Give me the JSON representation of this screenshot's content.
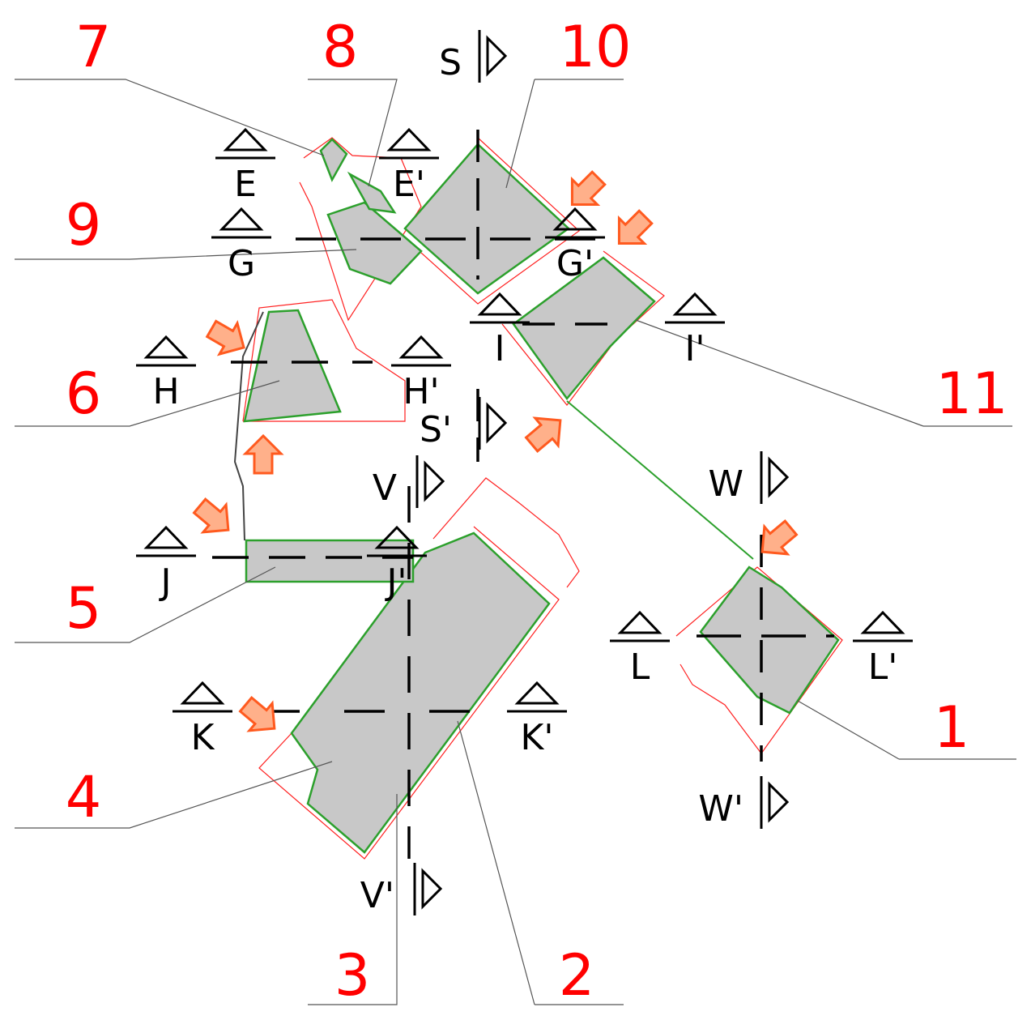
{
  "zone_labels": [
    "7",
    "8",
    "10",
    "9",
    "6",
    "11",
    "5",
    "4",
    "1",
    "3",
    "2"
  ],
  "section_markers": [
    "E",
    "E'",
    "G",
    "G'",
    "I",
    "I'",
    "H",
    "H'",
    "J",
    "J'",
    "L",
    "L'",
    "K",
    "K'"
  ],
  "view_markers": [
    "S",
    "S'",
    "V",
    "V'",
    "W",
    "W'"
  ]
}
